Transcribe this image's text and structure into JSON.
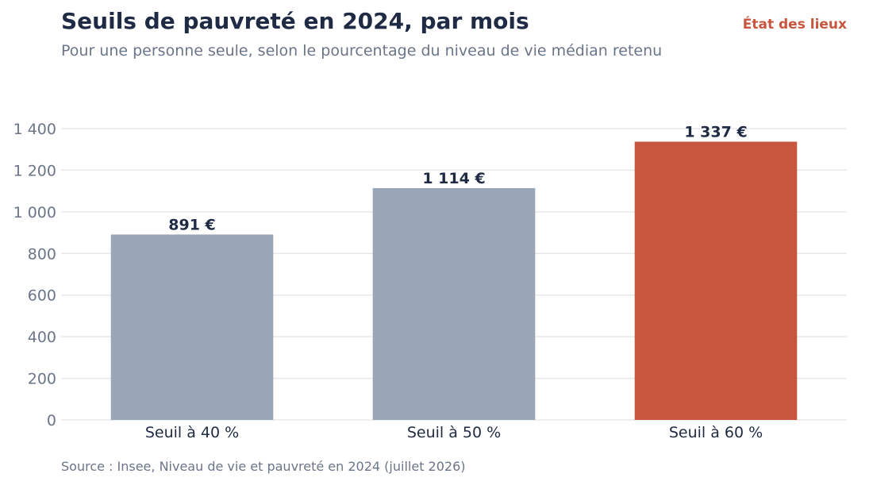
{
  "header": {
    "title": "Seuils de pauvreté en 2024, par mois",
    "subtitle": "Pour une personne seule, selon le pourcentage du niveau de vie médian retenu",
    "brand": "État des lieux"
  },
  "footer": {
    "source": "Source : Insee, Niveau de vie et pauvreté en 2024 (juillet 2026)"
  },
  "colors": {
    "base_bar": "#9aa5b6",
    "highlight_bar": "#c8563e",
    "grid": "#e6e8ec",
    "title": "#1f2a44",
    "muted": "#6b7589"
  },
  "chart_data": {
    "type": "bar",
    "title": "Seuils de pauvreté en 2024, par mois",
    "subtitle": "Pour une personne seule, selon le pourcentage du niveau de vie médian retenu",
    "xlabel": "",
    "ylabel": "",
    "categories": [
      "Seuil à 40 %",
      "Seuil à 50 %",
      "Seuil à 60 %"
    ],
    "values": [
      891,
      1114,
      1337
    ],
    "data_labels": [
      "891 €",
      "1 114 €",
      "1 337 €"
    ],
    "highlight_index": 2,
    "ylim": [
      0,
      1400
    ],
    "yticks": [
      0,
      200,
      400,
      600,
      800,
      1000,
      1200,
      1400
    ],
    "ytick_labels": [
      "0",
      "200",
      "400",
      "600",
      "800",
      "1 000",
      "1 200",
      "1 400"
    ],
    "grid": true,
    "legend": "none"
  }
}
